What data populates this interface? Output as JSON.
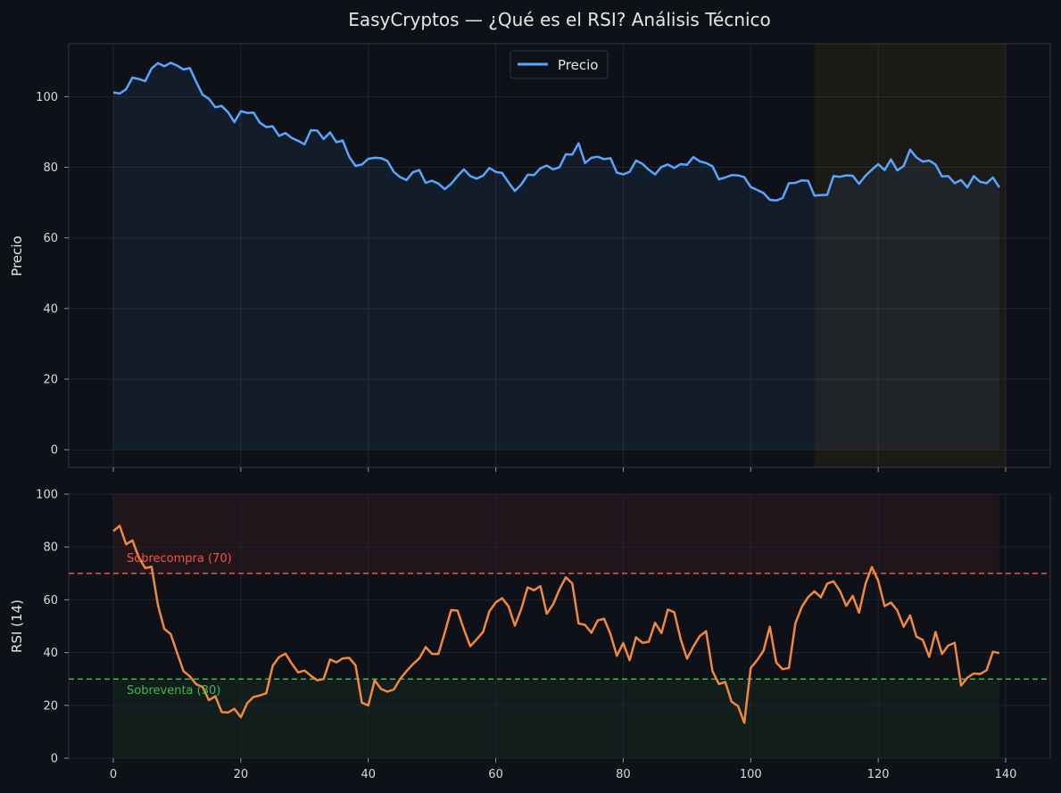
{
  "title": "EasyCryptos — ¿Qué es el RSI? Análisis Técnico",
  "colors": {
    "background": "#0e1117",
    "axes_background": "#0e1117",
    "price_line": "#58a6ff",
    "rsi_line": "#f0883e",
    "overbought": "#f85149",
    "oversold": "#3fb950",
    "highlight_zone": "#d29922"
  },
  "chart_data": [
    {
      "type": "area",
      "ylabel": "Precio",
      "xlim": [
        -7,
        147
      ],
      "ylim": [
        -5,
        115
      ],
      "xticks": [
        0,
        20,
        40,
        60,
        80,
        100,
        120,
        140
      ],
      "yticks": [
        0,
        20,
        40,
        60,
        80,
        100
      ],
      "grid": true,
      "legend_position": "top-center",
      "shaded_x_range": [
        110,
        140
      ],
      "series": [
        {
          "name": "Precio",
          "x_start": 0,
          "values": [
            101.2,
            100.9,
            102.1,
            105.4,
            105.0,
            104.4,
            108.0,
            109.5,
            108.6,
            109.6,
            108.8,
            107.7,
            108.1,
            104.2,
            100.6,
            99.4,
            97.0,
            97.4,
            95.6,
            92.8,
            95.9,
            95.4,
            95.5,
            92.6,
            91.4,
            91.6,
            88.9,
            89.7,
            88.3,
            87.5,
            86.5,
            90.5,
            90.4,
            88.0,
            89.9,
            87.1,
            87.6,
            83.0,
            80.4,
            80.8,
            82.4,
            82.7,
            82.6,
            81.8,
            78.7,
            77.2,
            76.4,
            78.6,
            79.2,
            75.6,
            76.2,
            75.4,
            73.8,
            75.3,
            77.5,
            79.4,
            77.5,
            76.8,
            77.6,
            79.8,
            78.7,
            78.4,
            75.7,
            73.3,
            75.1,
            77.9,
            77.8,
            79.7,
            80.5,
            79.4,
            80.0,
            83.7,
            83.6,
            86.8,
            81.2,
            82.7,
            83.0,
            82.3,
            82.6,
            78.5,
            78.0,
            78.7,
            81.9,
            81.0,
            79.3,
            78.0,
            80.1,
            80.8,
            79.8,
            80.9,
            80.7,
            82.9,
            81.7,
            81.2,
            80.3,
            76.6,
            77.1,
            77.8,
            77.7,
            77.2,
            74.4,
            73.6,
            72.7,
            70.8,
            70.6,
            71.3,
            75.5,
            75.6,
            76.3,
            76.2,
            72.0,
            72.1,
            72.2,
            77.5,
            77.3,
            77.7,
            77.6,
            75.3,
            77.6,
            79.3,
            80.9,
            79.2,
            82.2,
            79.1,
            80.4,
            85.0,
            82.8,
            81.6,
            81.9,
            80.8,
            77.4,
            77.5,
            75.5,
            76.4,
            74.3,
            77.5,
            75.9,
            75.5,
            77.1,
            74.3
          ]
        }
      ]
    },
    {
      "type": "line",
      "ylabel": "RSI (14)",
      "xlim": [
        -7,
        147
      ],
      "ylim": [
        0,
        100
      ],
      "xticks": [
        0,
        20,
        40,
        60,
        80,
        100,
        120,
        140
      ],
      "yticks": [
        0,
        20,
        40,
        60,
        80,
        100
      ],
      "grid": true,
      "reference_lines": [
        {
          "y": 70,
          "label": "Sobrecompra (70)",
          "color": "#f85149",
          "fill_to": 100
        },
        {
          "y": 30,
          "label": "Sobreventa (30)",
          "color": "#3fb950",
          "fill_to": 0
        }
      ],
      "series": [
        {
          "x_start": 0,
          "values": [
            86.0,
            88.0,
            81.0,
            82.5,
            76.0,
            72.0,
            72.5,
            58.0,
            49.0,
            47.0,
            40.0,
            33.0,
            31.0,
            28.0,
            27.0,
            22.0,
            23.5,
            17.5,
            17.3,
            18.7,
            15.5,
            20.8,
            23.2,
            23.8,
            24.6,
            35.0,
            38.3,
            39.6,
            35.8,
            32.5,
            33.2,
            31.2,
            29.5,
            30.0,
            37.4,
            36.3,
            37.8,
            38.0,
            35.2,
            21.0,
            20.0,
            29.5,
            26.2,
            25.2,
            26.0,
            30.0,
            33.0,
            35.6,
            37.8,
            42.1,
            39.5,
            39.5,
            47.5,
            56.1,
            55.9,
            48.8,
            42.4,
            45.0,
            47.8,
            55.6,
            59.0,
            60.6,
            57.5,
            50.2,
            56.5,
            64.7,
            63.6,
            65.2,
            54.7,
            58.3,
            64.0,
            68.5,
            66.2,
            51.0,
            50.5,
            47.5,
            52.2,
            52.8,
            47.0,
            38.8,
            43.6,
            37.1,
            45.8,
            43.7,
            44.1,
            51.3,
            47.4,
            56.3,
            55.3,
            45.2,
            37.7,
            42.3,
            46.2,
            48.1,
            33.0,
            28.1,
            28.9,
            21.4,
            19.8,
            13.4,
            34.2,
            37.1,
            40.7,
            49.8,
            36.2,
            33.7,
            34.2,
            51.0,
            57.2,
            61.0,
            63.2,
            60.9,
            66.1,
            67.0,
            63.3,
            57.7,
            61.5,
            55.1,
            66.0,
            72.4,
            67.3,
            57.6,
            59.0,
            55.9,
            49.8,
            54.1,
            46.0,
            44.8,
            38.4,
            47.8,
            39.5,
            42.7,
            43.7,
            27.5,
            30.5,
            32.1,
            31.9,
            33.3,
            40.3,
            39.8
          ]
        }
      ]
    }
  ]
}
